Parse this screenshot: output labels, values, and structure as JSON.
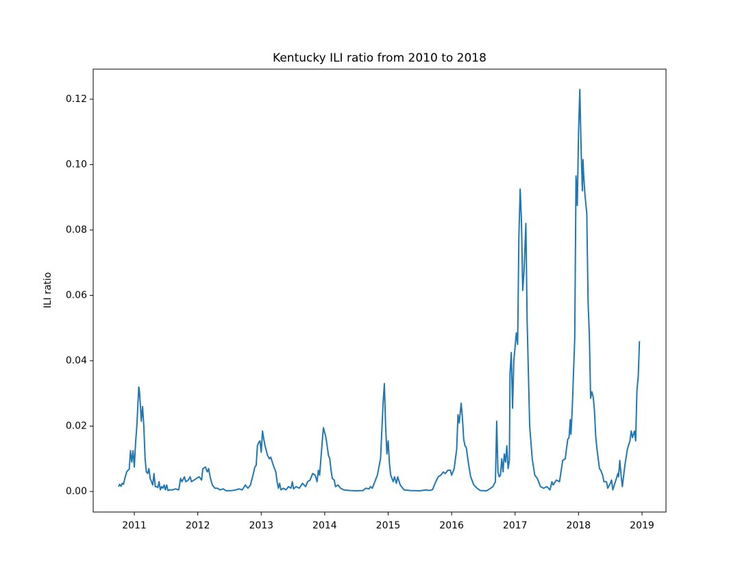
{
  "chart_data": {
    "type": "line",
    "title": "Kentucky ILI ratio from 2010 to 2018",
    "y_label": "ILI ratio",
    "x": [
      2010.75,
      2010.77,
      2010.79,
      2010.81,
      2010.83,
      2010.85,
      2010.88,
      2010.9,
      2010.92,
      2010.94,
      2010.96,
      2010.98,
      2011.0,
      2011.02,
      2011.04,
      2011.07,
      2011.08,
      2011.1,
      2011.11,
      2011.13,
      2011.15,
      2011.17,
      2011.19,
      2011.21,
      2011.23,
      2011.25,
      2011.27,
      2011.29,
      2011.31,
      2011.33,
      2011.35,
      2011.37,
      2011.39,
      2011.41,
      2011.43,
      2011.45,
      2011.47,
      2011.49,
      2011.51,
      2011.53,
      2011.56,
      2011.6,
      2011.65,
      2011.7,
      2011.73,
      2011.75,
      2011.79,
      2011.81,
      2011.85,
      2011.88,
      2011.9,
      2011.94,
      2011.98,
      2012.02,
      2012.06,
      2012.08,
      2012.12,
      2012.15,
      2012.17,
      2012.2,
      2012.23,
      2012.27,
      2012.31,
      2012.35,
      2012.4,
      2012.45,
      2012.55,
      2012.6,
      2012.65,
      2012.7,
      2012.75,
      2012.79,
      2012.83,
      2012.87,
      2012.9,
      2012.92,
      2012.94,
      2012.96,
      2012.98,
      2013.0,
      2013.02,
      2013.04,
      2013.06,
      2013.1,
      2013.13,
      2013.15,
      2013.19,
      2013.23,
      2013.25,
      2013.27,
      2013.29,
      2013.31,
      2013.35,
      2013.39,
      2013.43,
      2013.47,
      2013.49,
      2013.51,
      2013.55,
      2013.6,
      2013.65,
      2013.7,
      2013.73,
      2013.77,
      2013.81,
      2013.85,
      2013.88,
      2013.9,
      2013.92,
      2013.96,
      2013.98,
      2014.02,
      2014.06,
      2014.08,
      2014.1,
      2014.12,
      2014.15,
      2014.17,
      2014.21,
      2014.25,
      2014.3,
      2014.4,
      2014.5,
      2014.6,
      2014.65,
      2014.7,
      2014.72,
      2014.75,
      2014.79,
      2014.83,
      2014.88,
      2014.92,
      2014.94,
      2014.96,
      2014.98,
      2015.0,
      2015.02,
      2015.04,
      2015.08,
      2015.1,
      2015.13,
      2015.15,
      2015.19,
      2015.25,
      2015.35,
      2015.5,
      2015.6,
      2015.65,
      2015.7,
      2015.75,
      2015.79,
      2015.83,
      2015.87,
      2015.9,
      2015.94,
      2015.98,
      2016.0,
      2016.04,
      2016.08,
      2016.1,
      2016.12,
      2016.15,
      2016.17,
      2016.19,
      2016.21,
      2016.23,
      2016.27,
      2016.3,
      2016.35,
      2016.4,
      2016.45,
      2016.55,
      2016.6,
      2016.65,
      2016.69,
      2016.71,
      2016.73,
      2016.75,
      2016.77,
      2016.79,
      2016.81,
      2016.83,
      2016.85,
      2016.87,
      2016.89,
      2016.91,
      2016.92,
      2016.94,
      2016.96,
      2016.98,
      2017.02,
      2017.04,
      2017.06,
      2017.08,
      2017.1,
      2017.12,
      2017.14,
      2017.17,
      2017.19,
      2017.23,
      2017.27,
      2017.31,
      2017.35,
      2017.4,
      2017.45,
      2017.5,
      2017.55,
      2017.58,
      2017.6,
      2017.65,
      2017.7,
      2017.75,
      2017.79,
      2017.83,
      2017.85,
      2017.87,
      2017.88,
      2017.9,
      2017.94,
      2017.96,
      2017.98,
      2018.0,
      2018.02,
      2018.04,
      2018.06,
      2018.07,
      2018.08,
      2018.1,
      2018.13,
      2018.15,
      2018.17,
      2018.19,
      2018.21,
      2018.23,
      2018.25,
      2018.27,
      2018.29,
      2018.31,
      2018.33,
      2018.35,
      2018.38,
      2018.4,
      2018.44,
      2018.46,
      2018.5,
      2018.52,
      2018.54,
      2018.58,
      2018.62,
      2018.63,
      2018.65,
      2018.67,
      2018.69,
      2018.73,
      2018.77,
      2018.81,
      2018.83,
      2018.85,
      2018.88,
      2018.9,
      2018.92,
      2018.94,
      2018.96
    ],
    "series": [
      {
        "name": "ILI ratio",
        "color": "#1f77b4",
        "values": [
          0.0015,
          0.0022,
          0.0016,
          0.0025,
          0.0022,
          0.004,
          0.006,
          0.0065,
          0.0068,
          0.0125,
          0.009,
          0.0125,
          0.0075,
          0.015,
          0.02,
          0.032,
          0.031,
          0.025,
          0.0215,
          0.026,
          0.02,
          0.01,
          0.006,
          0.0055,
          0.007,
          0.004,
          0.003,
          0.002,
          0.0055,
          0.0015,
          0.0015,
          0.0012,
          0.003,
          0.0005,
          0.0015,
          0.001,
          0.002,
          0.0005,
          0.002,
          0.0003,
          0.0005,
          0.0005,
          0.0008,
          0.0005,
          0.004,
          0.003,
          0.0045,
          0.003,
          0.0035,
          0.0045,
          0.003,
          0.0035,
          0.004,
          0.0045,
          0.0035,
          0.007,
          0.0075,
          0.006,
          0.007,
          0.004,
          0.002,
          0.001,
          0.001,
          0.0005,
          0.0008,
          0.0002,
          0.0003,
          0.0005,
          0.0008,
          0.0005,
          0.002,
          0.001,
          0.002,
          0.005,
          0.0075,
          0.008,
          0.014,
          0.015,
          0.0155,
          0.012,
          0.0185,
          0.016,
          0.014,
          0.011,
          0.01,
          0.0105,
          0.008,
          0.006,
          0.003,
          0.001,
          0.0025,
          0.0005,
          0.001,
          0.0005,
          0.0015,
          0.001,
          0.003,
          0.0008,
          0.0015,
          0.001,
          0.0025,
          0.0015,
          0.003,
          0.0035,
          0.0055,
          0.005,
          0.003,
          0.0065,
          0.005,
          0.015,
          0.0195,
          0.0165,
          0.011,
          0.01,
          0.0065,
          0.004,
          0.0035,
          0.0015,
          0.002,
          0.001,
          0.0005,
          0.0003,
          0.0002,
          0.0003,
          0.001,
          0.0008,
          0.0015,
          0.001,
          0.003,
          0.005,
          0.01,
          0.027,
          0.033,
          0.02,
          0.0115,
          0.0155,
          0.0085,
          0.005,
          0.003,
          0.0045,
          0.0025,
          0.0045,
          0.002,
          0.0005,
          0.0003,
          0.0002,
          0.0005,
          0.0003,
          0.0006,
          0.003,
          0.0045,
          0.005,
          0.006,
          0.0055,
          0.0065,
          0.0065,
          0.005,
          0.007,
          0.013,
          0.0235,
          0.021,
          0.027,
          0.0225,
          0.016,
          0.014,
          0.0135,
          0.008,
          0.0045,
          0.002,
          0.001,
          0.0003,
          0.0002,
          0.0008,
          0.0015,
          0.003,
          0.0215,
          0.006,
          0.0045,
          0.005,
          0.01,
          0.006,
          0.0115,
          0.009,
          0.014,
          0.007,
          0.0095,
          0.036,
          0.0425,
          0.0255,
          0.04,
          0.0485,
          0.045,
          0.078,
          0.0925,
          0.083,
          0.0615,
          0.067,
          0.082,
          0.052,
          0.02,
          0.01,
          0.005,
          0.004,
          0.0015,
          0.001,
          0.0015,
          0.0005,
          0.003,
          0.002,
          0.0035,
          0.003,
          0.0095,
          0.01,
          0.016,
          0.0165,
          0.022,
          0.0175,
          0.025,
          0.047,
          0.0965,
          0.0875,
          0.11,
          0.123,
          0.105,
          0.092,
          0.1015,
          0.097,
          0.091,
          0.085,
          0.058,
          0.048,
          0.0285,
          0.0305,
          0.029,
          0.025,
          0.017,
          0.013,
          0.01,
          0.007,
          0.0065,
          0.005,
          0.003,
          0.003,
          0.001,
          0.0025,
          0.0035,
          0.0005,
          0.003,
          0.0055,
          0.0045,
          0.0095,
          0.005,
          0.0015,
          0.008,
          0.013,
          0.0155,
          0.0185,
          0.0165,
          0.0185,
          0.0155,
          0.031,
          0.035,
          0.046
        ]
      }
    ],
    "xlim": [
      2010.352,
      2019.378
    ],
    "xticks": [
      2011,
      2012,
      2013,
      2014,
      2015,
      2016,
      2017,
      2018,
      2019
    ],
    "ylim": [
      -0.00628,
      0.1292
    ],
    "yticks": [
      {
        "value": 0,
        "label": "0.00"
      },
      0.02,
      0.04,
      0.06,
      0.08,
      {
        "value": 0.1,
        "label": "0.10"
      },
      0.12
    ],
    "grid": false
  }
}
